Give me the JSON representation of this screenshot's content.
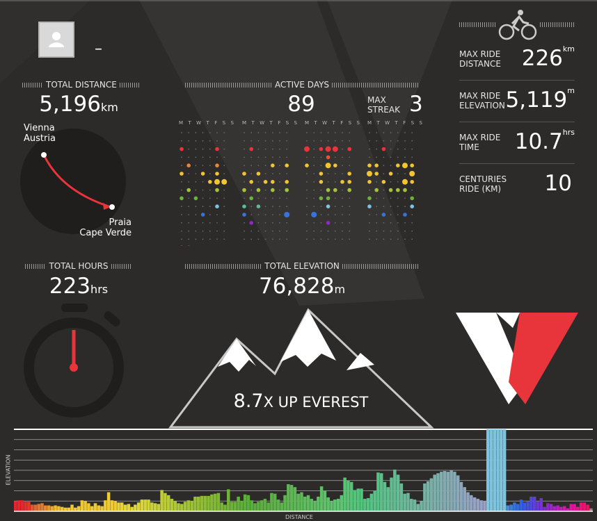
{
  "profile": {
    "name": "–",
    "avatar_icon": "user-icon"
  },
  "total_distance": {
    "label": "TOTAL DISTANCE",
    "value": "5,196",
    "unit": "km",
    "from": [
      "Vienna",
      "Austria"
    ],
    "to": [
      "Praia",
      "Cape Verde"
    ]
  },
  "active_days": {
    "label": "ACTIVE DAYS",
    "value": "89",
    "streak_label": [
      "MAX",
      "STREAK"
    ],
    "streak_value": "3",
    "weekday_headers": [
      "M T W T F S S",
      "M T W T F S S",
      "M T W T F S S",
      "M T W T F S S"
    ]
  },
  "total_hours": {
    "label": "TOTAL HOURS",
    "value": "223",
    "unit": "hrs"
  },
  "total_elevation": {
    "label": "TOTAL ELEVATION",
    "value": "76,828",
    "unit": "m"
  },
  "everest": {
    "value": "8.7",
    "text": "X UP EVEREST"
  },
  "stats": [
    {
      "label": [
        "MAX RIDE",
        "DISTANCE"
      ],
      "value": "226",
      "unit": "km"
    },
    {
      "label": [
        "MAX RIDE",
        "ELEVATION"
      ],
      "value": "5,119",
      "unit": "m"
    },
    {
      "label": [
        "MAX RIDE",
        "TIME"
      ],
      "value": "10.7",
      "unit": "hrs"
    },
    {
      "label": [
        "CENTURIES",
        "RIDE (km)"
      ],
      "value": "10",
      "unit": ""
    }
  ],
  "colors": {
    "background": "#2d2b2a",
    "red": "#e8343b",
    "accent_blue": "#7ec4df"
  },
  "chart_data": {
    "type": "bar",
    "xlabel": "DISTANCE",
    "ylabel": "ELEVATION",
    "grid": true,
    "values": [
      14,
      15,
      15,
      13,
      13,
      9,
      9,
      10,
      11,
      8,
      8,
      7,
      8,
      7,
      6,
      5,
      5,
      9,
      5,
      7,
      15,
      14,
      11,
      7,
      11,
      8,
      7,
      15,
      26,
      15,
      14,
      12,
      12,
      9,
      10,
      6,
      9,
      12,
      16,
      16,
      16,
      12,
      11,
      10,
      29,
      25,
      22,
      17,
      14,
      11,
      10,
      13,
      15,
      14,
      20,
      20,
      21,
      21,
      21,
      23,
      24,
      25,
      12,
      9,
      30,
      13,
      13,
      20,
      14,
      23,
      22,
      15,
      11,
      13,
      15,
      17,
      12,
      25,
      24,
      16,
      12,
      22,
      37,
      36,
      33,
      24,
      26,
      20,
      22,
      17,
      14,
      20,
      34,
      28,
      19,
      14,
      16,
      17,
      22,
      46,
      42,
      40,
      29,
      31,
      31,
      17,
      18,
      24,
      28,
      53,
      52,
      40,
      33,
      46,
      57,
      50,
      38,
      24,
      25,
      17,
      16,
      10,
      14,
      38,
      41,
      45,
      50,
      52,
      54,
      55,
      54,
      56,
      54,
      49,
      40,
      33,
      26,
      22,
      19,
      17,
      15,
      14,
      112,
      112,
      112,
      112,
      112,
      112,
      8,
      9,
      12,
      10,
      16,
      12,
      13,
      20,
      20,
      13,
      18,
      6,
      11,
      10,
      7,
      8,
      6,
      7,
      4,
      10,
      10,
      6,
      12,
      12,
      9,
      4
    ],
    "colors": [
      "#e8242f",
      "#e8242f",
      "#e8242f",
      "#e82f2a",
      "#e63a28",
      "#e25533",
      "#df6a2e",
      "#e07735",
      "#e07e30",
      "#e68830",
      "#e8962a",
      "#eba82c",
      "#efbb2e",
      "#f2c12c",
      "#f2c430",
      "#f4c632",
      "#f5c932",
      "#f4c838",
      "#f2c842",
      "#eec93a",
      "#f0c830",
      "#f0c72a",
      "#f0c82c",
      "#eec934",
      "#f0c836",
      "#efc736",
      "#eec936",
      "#efc935",
      "#f0ca36",
      "#eec937",
      "#eccb37",
      "#ead03a",
      "#e8d23a",
      "#e6d33c",
      "#e4d43c",
      "#e2d63d",
      "#e0d63d",
      "#dcd63c",
      "#d8d53a",
      "#d4d439",
      "#d0d33a",
      "#ccd13a",
      "#c8d03b",
      "#c4cf3a",
      "#c0cf39",
      "#bccd38",
      "#b8cc38",
      "#b4cb37",
      "#b0ca36",
      "#acc836",
      "#a8c636",
      "#a4c436",
      "#a0c436",
      "#9cc236",
      "#98c035",
      "#94bf35",
      "#90bd35",
      "#8cbc35",
      "#88bb35",
      "#84ba36",
      "#80b836",
      "#7cb736",
      "#78b637",
      "#74b537",
      "#70b437",
      "#6cb338",
      "#68b238",
      "#64b139",
      "#60b039",
      "#5cb03a",
      "#58af3a",
      "#58af3c",
      "#5aae3e",
      "#5cae40",
      "#5eae42",
      "#5eae44",
      "#5eaf46",
      "#5eb048",
      "#5eb14a",
      "#5eb24c",
      "#5eb34e",
      "#5eb450",
      "#5eb552",
      "#5eb654",
      "#5eb756",
      "#5eb858",
      "#5eb95a",
      "#5eba5c",
      "#5ebb5e",
      "#5ebc60",
      "#5ebd62",
      "#5ebe64",
      "#5ebf66",
      "#5ec068",
      "#5ec16a",
      "#5ec26c",
      "#5ec36e",
      "#5ec470",
      "#5cc472",
      "#5ac474",
      "#58c476",
      "#56c478",
      "#54c47a",
      "#52c47c",
      "#52c47e",
      "#52c480",
      "#54c382",
      "#56c284",
      "#58c186",
      "#5ac088",
      "#5cbf8a",
      "#5ebe8c",
      "#60bd8e",
      "#62bc90",
      "#64bb92",
      "#66ba94",
      "#68b996",
      "#6ab898",
      "#6cb79a",
      "#6eb69c",
      "#70b59e",
      "#72b4a0",
      "#74b3a2",
      "#76b2a4",
      "#78b1a6",
      "#7ab0a8",
      "#7cafaa",
      "#7eaeac",
      "#80adae",
      "#82acb0",
      "#84abb2",
      "#86aab4",
      "#88a9b6",
      "#8aa8b8",
      "#8ca7ba",
      "#8ea6bc",
      "#90a5be",
      "#92a4c0",
      "#94a3c2",
      "#96a2c4",
      "#98a1c6",
      "#9aa0c8",
      "#7ec4df",
      "#7ec4df",
      "#7ec4df",
      "#7ec4df",
      "#7ec4df",
      "#7ec4df",
      "#4a8ad0",
      "#3c7fd6",
      "#3574de",
      "#3069e4",
      "#2e60e8",
      "#3a58e6",
      "#4650e2",
      "#5248de",
      "#5e40da",
      "#6a38d6",
      "#7632d2",
      "#822cce",
      "#8e28ca",
      "#9a26c6",
      "#a624c2",
      "#b222be",
      "#be20ba",
      "#c81eb4",
      "#d01cac",
      "#d81aa2",
      "#de1898",
      "#e4168c",
      "#e81480",
      "#ea1470",
      "#ec1462"
    ]
  },
  "activity_dots": [
    [
      0,
      2,
      1,
      "#e8343b"
    ],
    [
      5,
      2,
      1,
      "#e8343b"
    ],
    [
      8,
      2,
      1,
      "#e8343b"
    ],
    [
      17,
      2,
      2,
      "#e8343b"
    ],
    [
      18,
      2,
      2,
      "#e8343b"
    ],
    [
      20,
      2,
      1,
      "#e8343b"
    ],
    [
      29,
      2,
      1,
      "#e8343b"
    ],
    [
      35,
      2,
      1,
      "#e8343b"
    ],
    [
      17,
      3,
      1,
      "#e8563a"
    ],
    [
      34,
      3,
      1,
      "#e88638"
    ],
    [
      1,
      4,
      1,
      "#e88638"
    ],
    [
      5,
      4,
      1,
      "#e88638"
    ],
    [
      13,
      4,
      1,
      "#f2c432"
    ],
    [
      17,
      4,
      2,
      "#f2c432"
    ],
    [
      18,
      4,
      1,
      "#f2c432"
    ],
    [
      22,
      4,
      1,
      "#f2c432"
    ],
    [
      26,
      4,
      2,
      "#f2c432"
    ],
    [
      27,
      4,
      1,
      "#f2c432"
    ],
    [
      31,
      4,
      1,
      "#f2c432"
    ],
    [
      33,
      4,
      1,
      "#f2c432"
    ],
    [
      34,
      4,
      2,
      "#f2c432"
    ],
    [
      0,
      5,
      1,
      "#f2c432"
    ],
    [
      3,
      5,
      1,
      "#f2c432"
    ],
    [
      5,
      5,
      1,
      "#f2c432"
    ],
    [
      7,
      5,
      1,
      "#f2c432"
    ],
    [
      9,
      5,
      1,
      "#f2c432"
    ],
    [
      16,
      5,
      1,
      "#f2c432"
    ],
    [
      24,
      5,
      1,
      "#f2c432"
    ],
    [
      27,
      5,
      2,
      "#f2c432"
    ],
    [
      28,
      5,
      1,
      "#f2c432"
    ],
    [
      30,
      5,
      1,
      "#f2c432"
    ],
    [
      4,
      6,
      1,
      "#f2c432"
    ],
    [
      5,
      6,
      2,
      "#f2c432"
    ],
    [
      6,
      6,
      2,
      "#f2c432"
    ],
    [
      10,
      6,
      1,
      "#f2c432"
    ],
    [
      13,
      6,
      1,
      "#f2c432"
    ],
    [
      16,
      6,
      1,
      "#f2c432"
    ],
    [
      20,
      6,
      1,
      "#f2c432"
    ],
    [
      23,
      6,
      1,
      "#f2c432"
    ],
    [
      26,
      6,
      2,
      "#f2c432"
    ],
    [
      27,
      6,
      1,
      "#f2c432"
    ],
    [
      35,
      6,
      1,
      "#d6d43a"
    ],
    [
      1,
      7,
      1,
      "#a4c436"
    ],
    [
      5,
      7,
      1,
      "#a4c436"
    ],
    [
      9,
      7,
      1,
      "#a4c436"
    ],
    [
      13,
      7,
      1,
      "#a4c436"
    ],
    [
      17,
      7,
      1,
      "#a4c436"
    ],
    [
      22,
      7,
      1,
      "#a4c436"
    ],
    [
      24,
      7,
      1,
      "#a4c436"
    ],
    [
      26,
      7,
      1,
      "#a4c436"
    ],
    [
      31,
      7,
      1,
      "#a4c436"
    ],
    [
      34,
      7,
      1,
      "#a4c436"
    ],
    [
      0,
      8,
      1,
      "#6cb338"
    ],
    [
      2,
      8,
      1,
      "#6cb338"
    ],
    [
      8,
      8,
      1,
      "#6cb338"
    ],
    [
      16,
      8,
      1,
      "#6cb338"
    ],
    [
      21,
      8,
      1,
      "#6cb338"
    ],
    [
      27,
      8,
      1,
      "#6cb338"
    ],
    [
      33,
      8,
      1,
      "#6cb338"
    ],
    [
      35,
      8,
      3,
      "#7ec4df"
    ],
    [
      5,
      9,
      1,
      "#7ec4df"
    ],
    [
      9,
      9,
      1,
      "#5eb8a0"
    ],
    [
      17,
      9,
      1,
      "#7ec4df"
    ],
    [
      27,
      9,
      1,
      "#7ec4df"
    ],
    [
      3,
      10,
      1,
      "#3574de"
    ],
    [
      7,
      10,
      1,
      "#3574de"
    ],
    [
      15,
      10,
      2,
      "#3574de"
    ],
    [
      29,
      10,
      1,
      "#3574de"
    ],
    [
      32,
      10,
      1,
      "#3574de"
    ],
    [
      8,
      11,
      1,
      "#8e28ca"
    ],
    [
      17,
      11,
      1,
      "#8e28ca"
    ],
    [
      35,
      11,
      1,
      "#8e28ca"
    ],
    [
      0,
      14,
      1,
      "#e8343b"
    ],
    [
      1,
      14,
      1,
      "#e8343b"
    ]
  ]
}
